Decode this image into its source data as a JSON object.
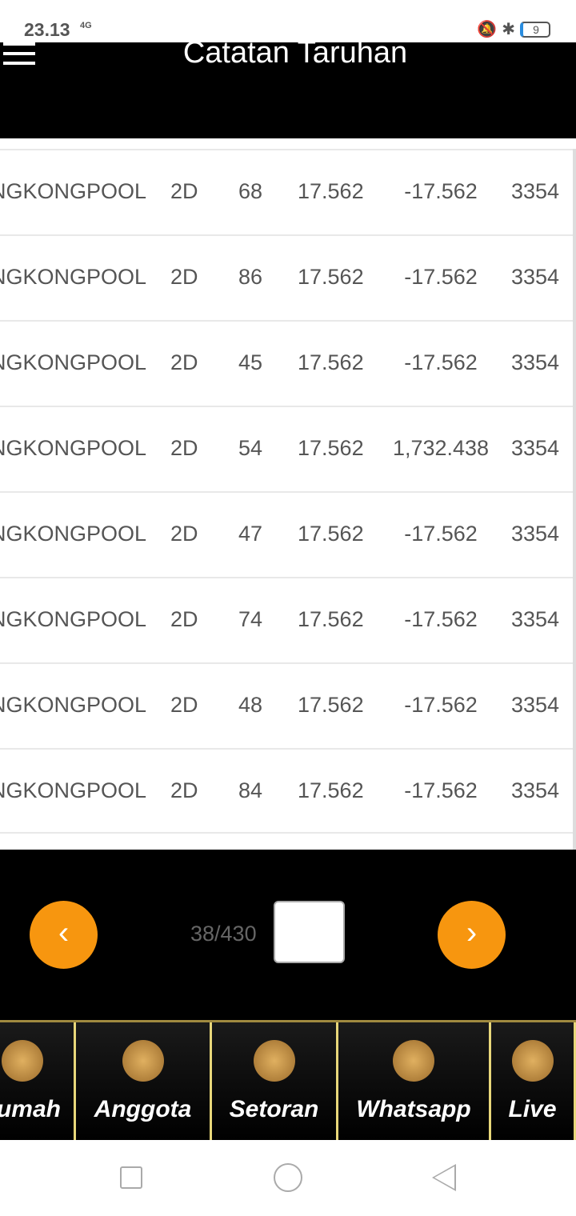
{
  "status": {
    "time": "23.13",
    "network": "4G",
    "battery": "9"
  },
  "header": {
    "title": "Catatan Taruhan"
  },
  "rows": [
    [
      "NGKONGPOOL",
      "2D",
      "68",
      "17.562",
      "-17.562",
      "3354"
    ],
    [
      "NGKONGPOOL",
      "2D",
      "86",
      "17.562",
      "-17.562",
      "3354"
    ],
    [
      "NGKONGPOOL",
      "2D",
      "45",
      "17.562",
      "-17.562",
      "3354"
    ],
    [
      "NGKONGPOOL",
      "2D",
      "54",
      "17.562",
      "1,732.438",
      "3354"
    ],
    [
      "NGKONGPOOL",
      "2D",
      "47",
      "17.562",
      "-17.562",
      "3354"
    ],
    [
      "NGKONGPOOL",
      "2D",
      "74",
      "17.562",
      "-17.562",
      "3354"
    ],
    [
      "NGKONGPOOL",
      "2D",
      "48",
      "17.562",
      "-17.562",
      "3354"
    ],
    [
      "NGKONGPOOL",
      "2D",
      "84",
      "17.562",
      "-17.562",
      "3354"
    ]
  ],
  "pager": {
    "info": "38/430",
    "prev": "‹",
    "next": "›",
    "accent": "#f7960f"
  },
  "nav": [
    {
      "label": "Rumah",
      "icon": "home-icon"
    },
    {
      "label": "Anggota",
      "icon": "user-icon"
    },
    {
      "label": "Setoran",
      "icon": "deposit-icon"
    },
    {
      "label": "Whatsapp",
      "icon": "whatsapp-icon"
    },
    {
      "label": "Live",
      "icon": "live-chat-icon"
    }
  ]
}
